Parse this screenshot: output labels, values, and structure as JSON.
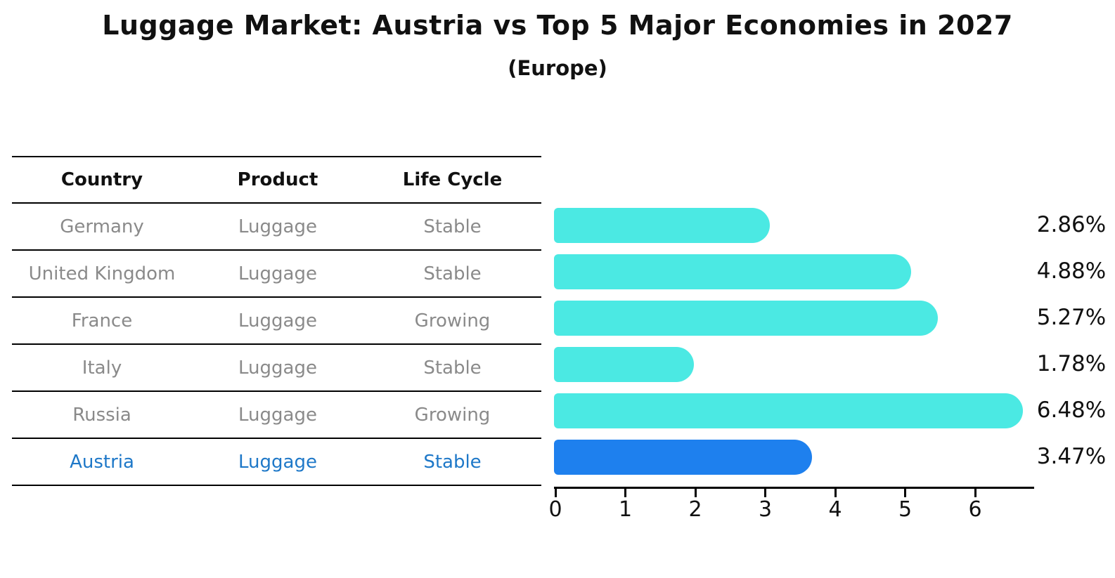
{
  "header": {
    "title": "Luggage Market: Austria vs Top 5 Major Economies in 2027",
    "subtitle": "(Europe)"
  },
  "table": {
    "headers": [
      "Country",
      "Product",
      "Life Cycle"
    ],
    "rows": [
      {
        "country": "Germany",
        "product": "Luggage",
        "life_cycle": "Stable",
        "highlight": false
      },
      {
        "country": "United Kingdom",
        "product": "Luggage",
        "life_cycle": "Stable",
        "highlight": false
      },
      {
        "country": "France",
        "product": "Luggage",
        "life_cycle": "Growing",
        "highlight": false
      },
      {
        "country": "Italy",
        "product": "Luggage",
        "life_cycle": "Stable",
        "highlight": false
      },
      {
        "country": "Russia",
        "product": "Luggage",
        "life_cycle": "Growing",
        "highlight": false
      },
      {
        "country": "Austria",
        "product": "Luggage",
        "life_cycle": "Stable",
        "highlight": true
      }
    ]
  },
  "chart_data": {
    "type": "bar",
    "orientation": "horizontal",
    "title": "Luggage Market: Austria vs Top 5 Major Economies in 2027",
    "subtitle": "(Europe)",
    "categories": [
      "Germany",
      "United Kingdom",
      "France",
      "Italy",
      "Russia",
      "Austria"
    ],
    "values": [
      2.86,
      4.88,
      5.27,
      1.78,
      6.48,
      3.47
    ],
    "value_labels": [
      "2.86%",
      "4.88%",
      "5.27%",
      "1.78%",
      "6.48%",
      "3.47%"
    ],
    "xticks": [
      0,
      1,
      2,
      3,
      4,
      5,
      6
    ],
    "xlim": [
      0,
      6.9
    ],
    "grid": false,
    "legend": "none",
    "bar_color": "#4BE9E3",
    "highlight_color": "#1E80EE",
    "highlight_index": 5,
    "highlight_style": "dotted-border"
  },
  "colors": {
    "background": "#ffffff",
    "text_dark": "#111111",
    "text_muted": "#8a8a8a",
    "highlight_text": "#1E78C8",
    "axis": "#000000"
  }
}
